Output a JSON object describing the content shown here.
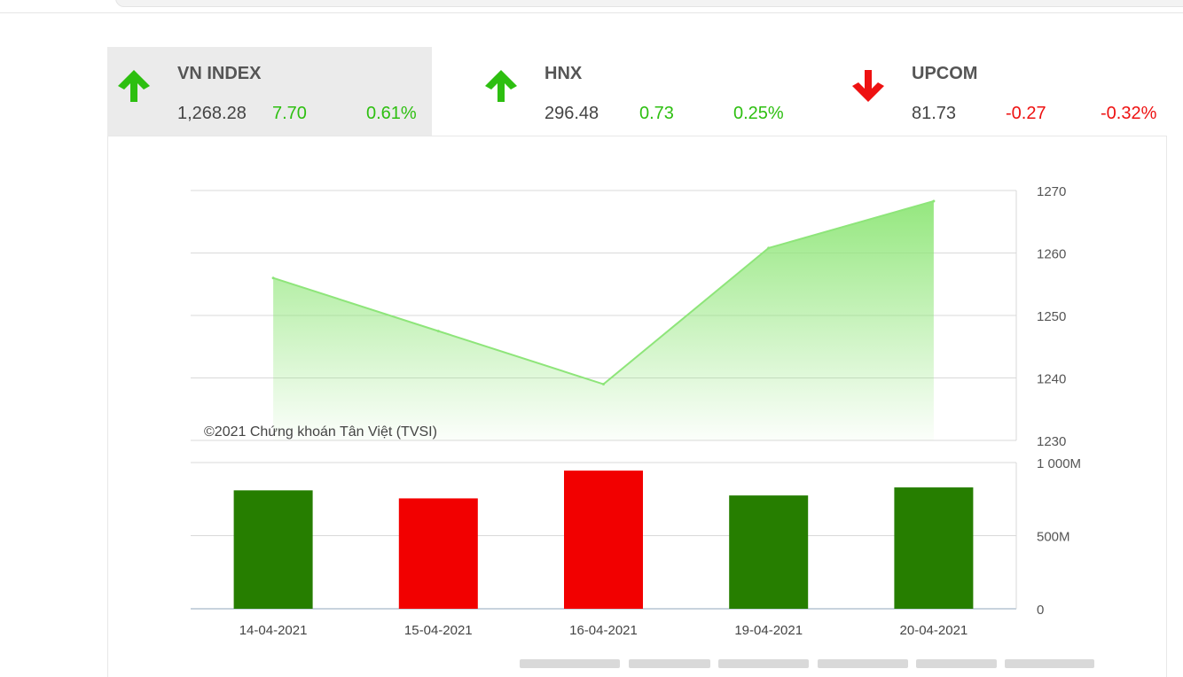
{
  "indices": [
    {
      "name": "VN INDEX",
      "value": "1,268.28",
      "change": "7.70",
      "percent": "0.61%",
      "direction": "up",
      "icon": "arrow-up-icon"
    },
    {
      "name": "HNX",
      "value": "296.48",
      "change": "0.73",
      "percent": "0.25%",
      "direction": "up",
      "icon": "arrow-up-icon"
    },
    {
      "name": "UPCOM",
      "value": "81.73",
      "change": "-0.27",
      "percent": "-0.32%",
      "direction": "down",
      "icon": "arrow-down-icon"
    }
  ],
  "colors": {
    "up": "#2dbf10",
    "down": "#ee1111",
    "bar_up": "#267e00",
    "bar_down": "#f20000",
    "line": "#8ee57a",
    "area_top": "#8fe678",
    "grid": "#d9d9d9"
  },
  "chart_data": [
    {
      "type": "area",
      "x": [
        "14-04-2021",
        "15-04-2021",
        "16-04-2021",
        "19-04-2021",
        "20-04-2021"
      ],
      "values": [
        1256.0,
        1247.5,
        1239.0,
        1260.8,
        1268.3
      ],
      "ylim": [
        1230,
        1270
      ],
      "yticks": [
        "1270",
        "1260",
        "1250",
        "1240",
        "1230"
      ],
      "ytick_values": [
        1270,
        1260,
        1250,
        1240,
        1230
      ],
      "axis_side": "right",
      "grid": true,
      "annotation": "©2021 Chứng khoán Tân Việt (TVSI)"
    },
    {
      "type": "bar",
      "categories": [
        "14-04-2021",
        "15-04-2021",
        "16-04-2021",
        "19-04-2021",
        "20-04-2021"
      ],
      "values": [
        810,
        755,
        945,
        775,
        830
      ],
      "value_unit": "M",
      "bar_direction": [
        "up",
        "down",
        "down",
        "up",
        "up"
      ],
      "ylim": [
        0,
        1000
      ],
      "yticks": [
        "1 000M",
        "500M",
        "0"
      ],
      "ytick_values": [
        1000,
        500,
        0
      ],
      "axis_side": "right",
      "grid": true
    }
  ]
}
